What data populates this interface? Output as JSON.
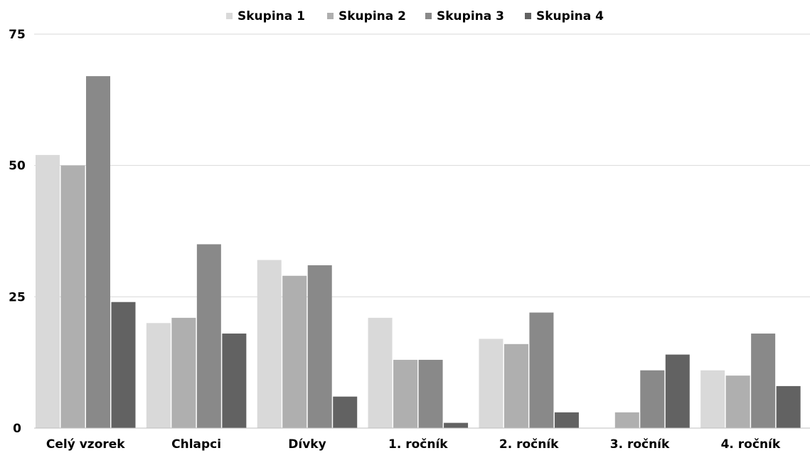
{
  "chart_data": {
    "type": "bar",
    "title": "",
    "xlabel": "",
    "ylabel": "",
    "ylim": [
      0,
      75
    ],
    "yticks": [
      0,
      25,
      50,
      75
    ],
    "grid": true,
    "legend_position": "top",
    "categories": [
      "Celý vzorek",
      "Chlapci",
      "Dívky",
      "1. ročník",
      "2. ročník",
      "3. ročník",
      "4. ročník"
    ],
    "series": [
      {
        "name": "Skupina 1",
        "color": "#d9d9d9",
        "values": [
          52,
          20,
          32,
          21,
          17,
          0,
          11
        ]
      },
      {
        "name": "Skupina 2",
        "color": "#afafaf",
        "values": [
          50,
          21,
          29,
          13,
          16,
          3,
          10
        ]
      },
      {
        "name": "Skupina 3",
        "color": "#898989",
        "values": [
          67,
          35,
          31,
          13,
          22,
          11,
          18
        ]
      },
      {
        "name": "Skupina 4",
        "color": "#626262",
        "values": [
          24,
          18,
          6,
          1,
          3,
          14,
          8
        ]
      }
    ]
  }
}
